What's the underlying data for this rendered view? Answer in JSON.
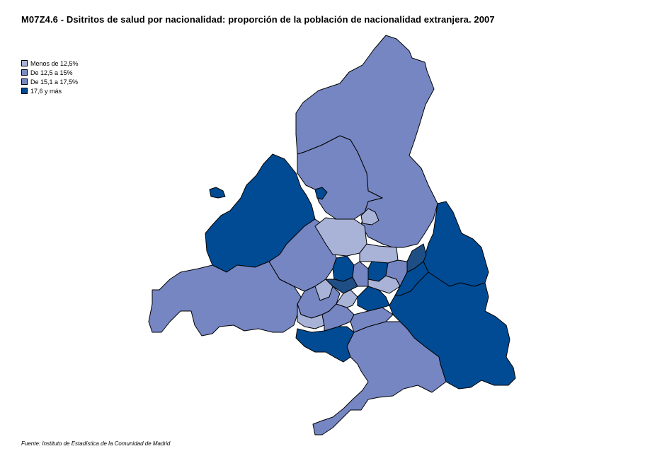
{
  "title": "M07Z4.6 - Dsitritos de salud por nacionalidad: proporción de la población de nacionalidad extranjera. 2007",
  "legend": {
    "items": [
      {
        "label": "Menos de 12,5%",
        "color": "#a9b3d8"
      },
      {
        "label": "De 12,5 a 15%",
        "color": "#7a8cc4"
      },
      {
        "label": "De 15,1 a 17,5%",
        "color": "#7487c0"
      },
      {
        "label": "17,6 y más",
        "color": "#004b93"
      }
    ]
  },
  "source": "Fuente: Instituto de Estadística de la Comunidad de Madrid",
  "colors": {
    "light": "#a9b3d8",
    "medium": "#7586c2",
    "dark": "#004b93",
    "darker": "#1f4e85",
    "border": "#000000"
  }
}
